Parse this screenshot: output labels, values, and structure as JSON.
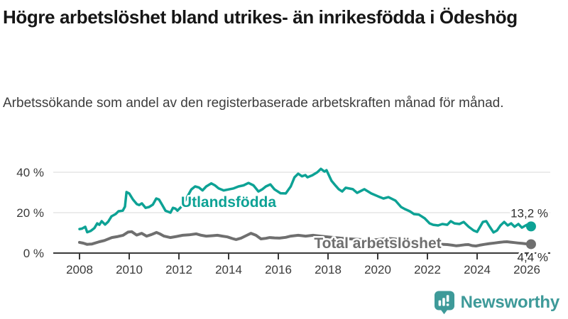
{
  "header": {
    "title": "Högre arbetslöshet bland utrikes- än inrikesfödda i Ödeshög",
    "subtitle": "Arbetssökande som andel av den registerbaserade arbetskraften månad för månad."
  },
  "colors": {
    "accent_teal": "#0da295",
    "series_gray": "#6f6f6f",
    "axis": "#3a3a3a",
    "gridline": "#d9d9d9",
    "logo_teal": "#3e9a99",
    "title_text": "#161616",
    "subtitle_text": "#3d3d3d"
  },
  "chart_data": {
    "type": "line",
    "title": "Högre arbetslöshet bland utrikes- än inrikesfödda i Ödeshög",
    "subtitle": "Arbetssökande som andel av den registerbaserade arbetskraften månad för månad.",
    "xlabel": "",
    "ylabel": "",
    "x_axis": {
      "ticks": [
        2008,
        2010,
        2012,
        2014,
        2016,
        2018,
        2020,
        2022,
        2024,
        2026
      ],
      "range": [
        2007,
        2027
      ]
    },
    "y_axis": {
      "tick_values": [
        0,
        20,
        40
      ],
      "tick_labels": [
        "0 %",
        "20 %",
        "40 %"
      ],
      "ylim": [
        0,
        45
      ]
    },
    "grid": "horizontal",
    "legend_position": "inline-labels",
    "series": [
      {
        "name": "Utlandsfödda",
        "color": "#0da295",
        "end_value": 13.2,
        "end_label": "13,2 %",
        "points": [
          [
            2008.0,
            11.9
          ],
          [
            2008.1,
            12.1
          ],
          [
            2008.23,
            13.0
          ],
          [
            2008.31,
            10.3
          ],
          [
            2008.45,
            11.0
          ],
          [
            2008.6,
            12.4
          ],
          [
            2008.71,
            14.7
          ],
          [
            2008.8,
            14.0
          ],
          [
            2008.89,
            15.8
          ],
          [
            2009.03,
            14.1
          ],
          [
            2009.15,
            15.5
          ],
          [
            2009.29,
            18.2
          ],
          [
            2009.45,
            19.3
          ],
          [
            2009.57,
            20.7
          ],
          [
            2009.74,
            21.0
          ],
          [
            2009.83,
            23.0
          ],
          [
            2009.89,
            30.2
          ],
          [
            2010.0,
            29.5
          ],
          [
            2010.15,
            26.5
          ],
          [
            2010.31,
            24.2
          ],
          [
            2010.4,
            23.8
          ],
          [
            2010.51,
            24.6
          ],
          [
            2010.66,
            22.4
          ],
          [
            2010.8,
            22.8
          ],
          [
            2010.95,
            24.0
          ],
          [
            2011.09,
            27.0
          ],
          [
            2011.2,
            26.5
          ],
          [
            2011.32,
            24.0
          ],
          [
            2011.46,
            21.0
          ],
          [
            2011.56,
            20.5
          ],
          [
            2011.66,
            20.0
          ],
          [
            2011.76,
            22.4
          ],
          [
            2011.86,
            22.0
          ],
          [
            2011.94,
            21.0
          ],
          [
            2012.1,
            23.0
          ],
          [
            2012.3,
            27.0
          ],
          [
            2012.5,
            31.5
          ],
          [
            2012.65,
            33.0
          ],
          [
            2012.8,
            32.5
          ],
          [
            2012.95,
            31.0
          ],
          [
            2013.1,
            33.0
          ],
          [
            2013.3,
            34.5
          ],
          [
            2013.45,
            33.5
          ],
          [
            2013.6,
            32.0
          ],
          [
            2013.8,
            31.0
          ],
          [
            2014.0,
            31.5
          ],
          [
            2014.2,
            32.0
          ],
          [
            2014.4,
            33.0
          ],
          [
            2014.6,
            33.5
          ],
          [
            2014.8,
            34.7
          ],
          [
            2015.0,
            33.5
          ],
          [
            2015.2,
            30.5
          ],
          [
            2015.35,
            31.5
          ],
          [
            2015.5,
            33.0
          ],
          [
            2015.68,
            34.0
          ],
          [
            2015.85,
            31.5
          ],
          [
            2016.09,
            29.6
          ],
          [
            2016.3,
            29.5
          ],
          [
            2016.5,
            33.0
          ],
          [
            2016.65,
            37.5
          ],
          [
            2016.8,
            39.3
          ],
          [
            2016.95,
            38.0
          ],
          [
            2017.09,
            38.6
          ],
          [
            2017.17,
            37.5
          ],
          [
            2017.37,
            38.5
          ],
          [
            2017.57,
            40.0
          ],
          [
            2017.71,
            41.7
          ],
          [
            2017.86,
            40.3
          ],
          [
            2017.94,
            41.0
          ],
          [
            2018.14,
            35.8
          ],
          [
            2018.31,
            33.3
          ],
          [
            2018.43,
            31.6
          ],
          [
            2018.57,
            30.5
          ],
          [
            2018.71,
            32.3
          ],
          [
            2019.0,
            31.6
          ],
          [
            2019.17,
            29.8
          ],
          [
            2019.46,
            31.6
          ],
          [
            2019.74,
            29.5
          ],
          [
            2020.03,
            28.0
          ],
          [
            2020.23,
            27.0
          ],
          [
            2020.43,
            27.7
          ],
          [
            2020.71,
            26.0
          ],
          [
            2020.94,
            22.8
          ],
          [
            2021.09,
            21.8
          ],
          [
            2021.29,
            20.7
          ],
          [
            2021.46,
            19.3
          ],
          [
            2021.66,
            19.0
          ],
          [
            2021.89,
            17.2
          ],
          [
            2022.09,
            14.7
          ],
          [
            2022.23,
            14.0
          ],
          [
            2022.43,
            13.7
          ],
          [
            2022.6,
            14.4
          ],
          [
            2022.8,
            14.0
          ],
          [
            2022.94,
            15.8
          ],
          [
            2023.09,
            14.7
          ],
          [
            2023.29,
            14.4
          ],
          [
            2023.46,
            15.4
          ],
          [
            2023.66,
            13.0
          ],
          [
            2023.86,
            11.2
          ],
          [
            2024.0,
            10.5
          ],
          [
            2024.23,
            15.4
          ],
          [
            2024.37,
            15.8
          ],
          [
            2024.51,
            13.0
          ],
          [
            2024.66,
            10.2
          ],
          [
            2024.8,
            11.2
          ],
          [
            2024.94,
            13.7
          ],
          [
            2025.09,
            15.4
          ],
          [
            2025.23,
            13.7
          ],
          [
            2025.37,
            14.7
          ],
          [
            2025.51,
            13.0
          ],
          [
            2025.66,
            14.4
          ],
          [
            2025.8,
            12.6
          ],
          [
            2026.0,
            14.0
          ],
          [
            2026.17,
            13.2
          ]
        ]
      },
      {
        "name": "Total arbetslöshet",
        "color": "#6f6f6f",
        "end_value": 4.4,
        "end_label": "4,4 %",
        "points": [
          [
            2008.0,
            5.3
          ],
          [
            2008.15,
            4.9
          ],
          [
            2008.3,
            4.3
          ],
          [
            2008.5,
            4.5
          ],
          [
            2008.8,
            5.6
          ],
          [
            2009.0,
            6.2
          ],
          [
            2009.3,
            7.7
          ],
          [
            2009.55,
            8.2
          ],
          [
            2009.75,
            8.8
          ],
          [
            2009.95,
            10.4
          ],
          [
            2010.1,
            10.6
          ],
          [
            2010.3,
            8.9
          ],
          [
            2010.5,
            9.8
          ],
          [
            2010.7,
            8.4
          ],
          [
            2010.9,
            9.2
          ],
          [
            2011.1,
            10.2
          ],
          [
            2011.25,
            9.4
          ],
          [
            2011.4,
            8.4
          ],
          [
            2011.65,
            7.7
          ],
          [
            2011.9,
            8.2
          ],
          [
            2012.15,
            8.8
          ],
          [
            2012.4,
            9.0
          ],
          [
            2012.7,
            9.5
          ],
          [
            2012.9,
            8.8
          ],
          [
            2013.1,
            8.4
          ],
          [
            2013.35,
            8.6
          ],
          [
            2013.55,
            8.8
          ],
          [
            2013.75,
            8.4
          ],
          [
            2013.95,
            8.0
          ],
          [
            2014.15,
            7.2
          ],
          [
            2014.3,
            6.7
          ],
          [
            2014.5,
            7.4
          ],
          [
            2014.7,
            8.6
          ],
          [
            2014.9,
            9.8
          ],
          [
            2015.1,
            8.8
          ],
          [
            2015.3,
            7.0
          ],
          [
            2015.5,
            7.3
          ],
          [
            2015.65,
            7.7
          ],
          [
            2015.85,
            7.5
          ],
          [
            2016.05,
            7.4
          ],
          [
            2016.3,
            7.8
          ],
          [
            2016.5,
            8.4
          ],
          [
            2016.8,
            8.8
          ],
          [
            2017.1,
            8.4
          ],
          [
            2017.4,
            8.8
          ],
          [
            2017.7,
            8.4
          ],
          [
            2018.0,
            8.0
          ],
          [
            2018.3,
            7.6
          ],
          [
            2018.6,
            7.3
          ],
          [
            2018.9,
            7.0
          ],
          [
            2019.2,
            6.8
          ],
          [
            2019.5,
            6.6
          ],
          [
            2019.8,
            6.5
          ],
          [
            2020.1,
            6.8
          ],
          [
            2020.35,
            7.3
          ],
          [
            2020.6,
            7.1
          ],
          [
            2020.9,
            6.7
          ],
          [
            2021.2,
            6.2
          ],
          [
            2021.5,
            5.7
          ],
          [
            2021.8,
            5.2
          ],
          [
            2022.1,
            4.8
          ],
          [
            2022.4,
            4.5
          ],
          [
            2022.65,
            4.3
          ],
          [
            2022.8,
            4.2
          ],
          [
            2023.0,
            3.9
          ],
          [
            2023.15,
            3.6
          ],
          [
            2023.3,
            3.8
          ],
          [
            2023.5,
            4.1
          ],
          [
            2023.65,
            4.2
          ],
          [
            2023.8,
            3.7
          ],
          [
            2023.95,
            3.5
          ],
          [
            2024.1,
            3.9
          ],
          [
            2024.3,
            4.3
          ],
          [
            2024.5,
            4.7
          ],
          [
            2024.7,
            5.0
          ],
          [
            2024.9,
            5.3
          ],
          [
            2025.05,
            5.5
          ],
          [
            2025.2,
            5.6
          ],
          [
            2025.35,
            5.4
          ],
          [
            2025.5,
            5.2
          ],
          [
            2025.65,
            5.0
          ],
          [
            2025.8,
            4.8
          ],
          [
            2025.95,
            4.6
          ],
          [
            2026.17,
            4.4
          ]
        ]
      }
    ]
  },
  "branding": {
    "logo_icon": "newsworthy-bar-chart-speech-bubble",
    "logo_text": "Newsworthy"
  }
}
